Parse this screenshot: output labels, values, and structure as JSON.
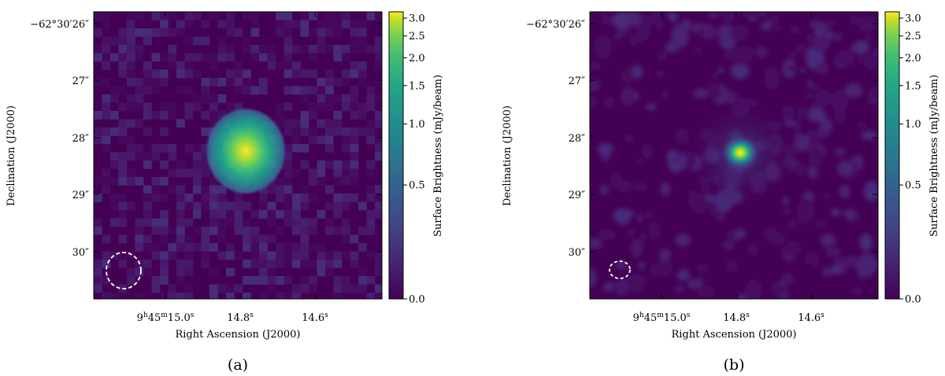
{
  "chart_data": [
    {
      "type": "heatmap",
      "caption": "(a)",
      "xlabel": "Right Ascension (J2000)",
      "ylabel": "Declination (J2000)",
      "x_ticks": [
        {
          "main": "9",
          "sup1": "h",
          "mid": "45",
          "sup2": "m",
          "rest": "15.0",
          "sup3": "s"
        },
        {
          "main": "14.8",
          "sup3": "s"
        },
        {
          "main": "14.6",
          "sup3": "s"
        }
      ],
      "y_ticks": [
        "−62°30′26″",
        "27″",
        "28″",
        "29″",
        "30″"
      ],
      "colorbar": {
        "label": "Surface Brightness (mJy/beam)",
        "ticks": [
          "0.0",
          "0.5",
          "1.0",
          "1.5",
          "2.0",
          "2.5",
          "3.0"
        ],
        "tick_values": [
          0.0,
          0.5,
          1.0,
          1.5,
          2.0,
          2.5,
          3.0
        ],
        "range": [
          0,
          3.2
        ],
        "scale": "asinh/sqrt stretch",
        "colormap": "viridis"
      },
      "source": {
        "peak": 3.2,
        "shape": "compact gaussian"
      },
      "beam": {
        "shape": "ellipse",
        "style": "dashed",
        "color": "#ffffff"
      },
      "pixelated": true
    },
    {
      "type": "heatmap",
      "caption": "(b)",
      "xlabel": "Right Ascension (J2000)",
      "ylabel": "Declination (J2000)",
      "x_ticks": [
        {
          "main": "9",
          "sup1": "h",
          "mid": "45",
          "sup2": "m",
          "rest": "15.0",
          "sup3": "s"
        },
        {
          "main": "14.8",
          "sup3": "s"
        },
        {
          "main": "14.6",
          "sup3": "s"
        }
      ],
      "y_ticks": [
        "−62°30′26″",
        "27″",
        "28″",
        "29″",
        "30″"
      ],
      "colorbar": {
        "label": "Surface Brightness (mJy/beam)",
        "ticks": [
          "0.0",
          "0.5",
          "1.0",
          "1.5",
          "2.0",
          "2.5",
          "3.0"
        ],
        "tick_values": [
          0.0,
          0.5,
          1.0,
          1.5,
          2.0,
          2.5,
          3.0
        ],
        "range": [
          0,
          3.2
        ],
        "scale": "asinh/sqrt stretch",
        "colormap": "viridis"
      },
      "source": {
        "peak": 3.2,
        "shape": "compact gaussian"
      },
      "beam": {
        "shape": "ellipse",
        "style": "dashed",
        "color": "#ffffff"
      },
      "pixelated": false
    }
  ]
}
